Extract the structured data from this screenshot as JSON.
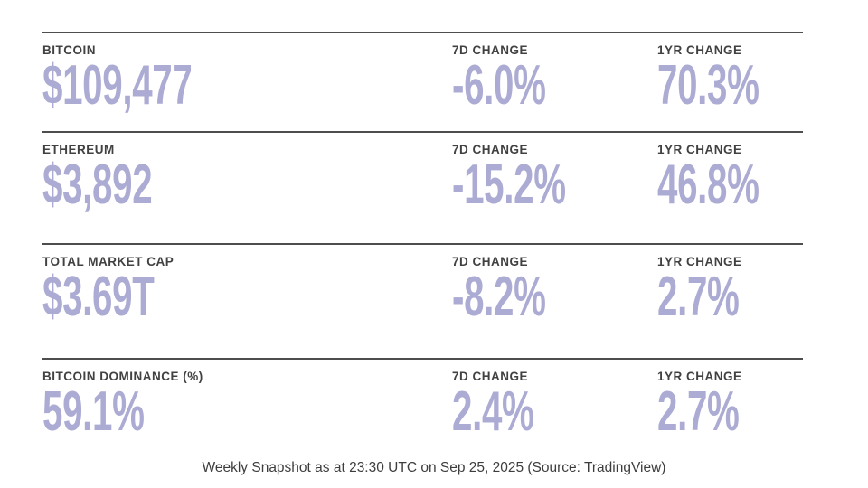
{
  "colors": {
    "accent": "#acabd3",
    "label": "#414141",
    "rule": "#4e4e4e",
    "footer_text": "#3d3d3d",
    "background": "#ffffff"
  },
  "chart_data": {
    "type": "table",
    "columns": [
      "7D CHANGE",
      "1YR CHANGE"
    ],
    "rows": [
      {
        "label": "BITCOIN",
        "value": "$109,477",
        "change_7d": "-6.0%",
        "change_1yr": "70.3%"
      },
      {
        "label": "ETHEREUM",
        "value": "$3,892",
        "change_7d": "-15.2%",
        "change_1yr": "46.8%"
      },
      {
        "label": "TOTAL MARKET CAP",
        "value": "$3.69T",
        "change_7d": "-8.2%",
        "change_1yr": "2.7%"
      },
      {
        "label": "BITCOIN DOMINANCE (%)",
        "value": "59.1%",
        "change_7d": "2.4%",
        "change_1yr": "2.7%"
      }
    ],
    "series": [
      {
        "name": "7D CHANGE",
        "values": [
          -6.0,
          -15.2,
          -8.2,
          2.4
        ]
      },
      {
        "name": "1YR CHANGE",
        "values": [
          70.3,
          46.8,
          2.7,
          2.7
        ]
      }
    ],
    "footnote": "Weekly Snapshot as at 23:30 UTC on Sep 25, 2025 (Source: TradingView)"
  }
}
